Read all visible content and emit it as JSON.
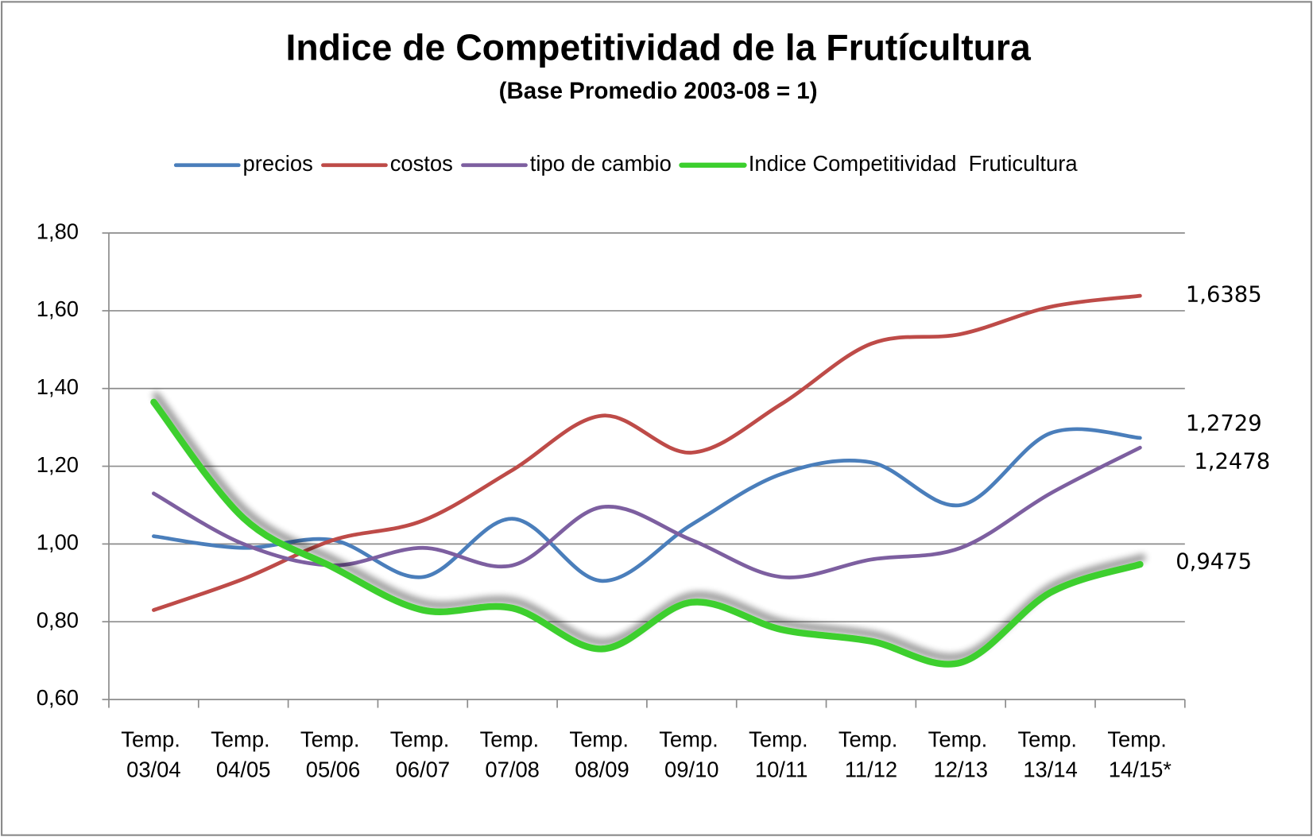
{
  "chart_data": {
    "type": "line",
    "title": "Indice de Competitividad de la Frutícultura",
    "subtitle": "(Base Promedio 2003-08 = 1)",
    "categories": [
      "Temp. 03/04",
      "Temp. 04/05",
      "Temp. 05/06",
      "Temp. 06/07",
      "Temp. 07/08",
      "Temp. 08/09",
      "Temp. 09/10",
      "Temp. 10/11",
      "Temp. 11/12",
      "Temp. 12/13",
      "Temp. 13/14",
      "Temp. 14/15*"
    ],
    "series": [
      {
        "name": "precios",
        "color": "#4a7ebb",
        "values": [
          1.02,
          0.99,
          1.01,
          0.915,
          1.065,
          0.905,
          1.05,
          1.18,
          1.21,
          1.1,
          1.285,
          1.2729
        ],
        "value_labels": [
          null,
          null,
          null,
          null,
          null,
          null,
          null,
          null,
          null,
          null,
          null,
          "1,2729"
        ]
      },
      {
        "name": "costos",
        "color": "#be4b48",
        "values": [
          0.83,
          0.91,
          1.01,
          1.06,
          1.19,
          1.33,
          1.235,
          1.36,
          1.515,
          1.54,
          1.61,
          1.6385
        ],
        "value_labels": [
          null,
          null,
          null,
          null,
          null,
          null,
          null,
          null,
          null,
          null,
          null,
          "1,6385"
        ]
      },
      {
        "name": "tipo de cambio",
        "color": "#7d5fa0",
        "values": [
          1.13,
          1.0,
          0.945,
          0.99,
          0.945,
          1.095,
          1.01,
          0.915,
          0.96,
          0.99,
          1.13,
          1.2478
        ],
        "value_labels": [
          null,
          null,
          null,
          null,
          null,
          null,
          null,
          null,
          null,
          null,
          null,
          "1,2478"
        ]
      },
      {
        "name": "Indice Competitividad  Fruticultura",
        "color": "#3ccf2e",
        "values": [
          1.365,
          1.067,
          0.94,
          0.83,
          0.835,
          0.73,
          0.85,
          0.78,
          0.75,
          0.695,
          0.875,
          0.9475
        ],
        "value_labels": [
          null,
          null,
          null,
          null,
          null,
          null,
          null,
          null,
          null,
          null,
          null,
          "0,9475"
        ]
      }
    ],
    "ylim": [
      0.6,
      1.8
    ],
    "yticks": [
      {
        "value": 0.6,
        "label": "0,60"
      },
      {
        "value": 0.8,
        "label": "0,80"
      },
      {
        "value": 1.0,
        "label": "1,00"
      },
      {
        "value": 1.2,
        "label": "1,20"
      },
      {
        "value": 1.4,
        "label": "1,40"
      },
      {
        "value": 1.6,
        "label": "1,60"
      },
      {
        "value": 1.8,
        "label": "1,80"
      }
    ],
    "grid": true,
    "legend": "top"
  }
}
